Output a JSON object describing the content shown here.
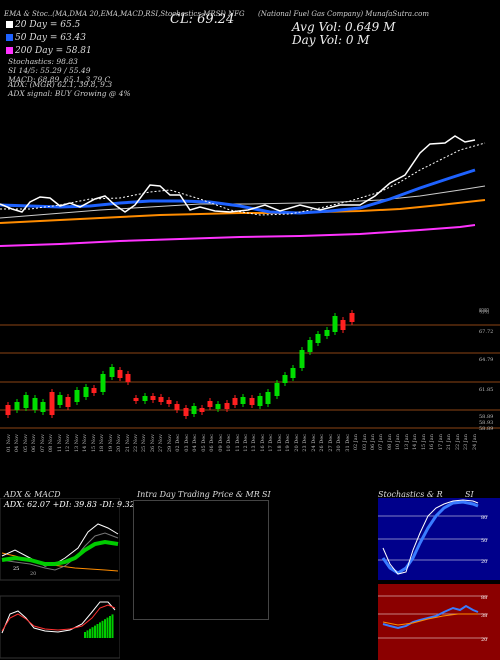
{
  "header": {
    "title_left": "EMA & Stoc..(MA,DMA 20,EMA,MACD,RSI,Stochastics,MRSI)",
    "close_label": "CL: 69.24",
    "company": "(National Fuel Gas Company) MunafaSutra.com",
    "avg_vol": "Avg Vol: 0.649 M",
    "day_vol": "Day Vol: 0 M",
    "ticker": "NFG"
  },
  "legend": [
    {
      "label": "20  Day = 65.5",
      "color": "#ffffff"
    },
    {
      "label": "50  Day = 63.43",
      "color": "#1e62ff"
    },
    {
      "label": "200  Day = 58.81",
      "color": "#ff33ff"
    }
  ],
  "stats": {
    "stochastics": "Stochastics: 98.83",
    "si": "SI 14/5: 55.29 / 55.49",
    "macd": "MACD: 68.89, 65.1, 3.79 C",
    "adx": "ADX:                   (MGR) 62.1, 39.8, 9.3",
    "adx_signal": "ADX  signal:                   BUY Growing @ 4%"
  },
  "price_levels": [
    "67.72",
    "64.79",
    "61.85",
    "58.89",
    "58.93",
    "58.89"
  ],
  "dates": [
    "01 Nov",
    "04 Nov",
    "05 Nov",
    "06 Nov",
    "07 Nov",
    "08 Nov",
    "11 Nov",
    "12 Nov",
    "13 Nov",
    "14 Nov",
    "15 Nov",
    "18 Nov",
    "19 Nov",
    "20 Nov",
    "21 Nov",
    "22 Nov",
    "25 Nov",
    "26 Nov",
    "27 Nov",
    "29 Nov",
    "02 Dec",
    "03 Dec",
    "04 Dec",
    "05 Dec",
    "06 Dec",
    "09 Dec",
    "10 Dec",
    "11 Dec",
    "12 Dec",
    "13 Dec",
    "16 Dec",
    "17 Dec",
    "18 Dec",
    "19 Dec",
    "20 Dec",
    "23 Dec",
    "24 Dec",
    "26 Dec",
    "27 Dec",
    "30 Dec",
    "31 Dec",
    "02 Jan",
    "03 Jan",
    "06 Jan",
    "07 Jan",
    "08 Jan",
    "10 Jan",
    "13 Jan",
    "14 Jan",
    "15 Jan",
    "16 Jan",
    "17 Jan",
    "21 Jan",
    "22 Jan",
    "23 Jan",
    "24 Jan"
  ],
  "bottom_panels": {
    "adx_title": "ADX  & MACD",
    "adx_values": "ADX: 62.07  +DI: 39.83  -DI: 9.32",
    "intraday_title": "Intra  Day Trading Price   & MR",
    "intraday_si": "SI",
    "stoch_title": "Stochastics & R",
    "stoch_si": "SI"
  },
  "stoch_scale": [
    "80",
    "50",
    "20"
  ],
  "si_scale": [
    "88",
    "38",
    "20"
  ],
  "colors": {
    "up": "#00dd00",
    "down": "#ff2020",
    "ma50": "#1e62ff",
    "ma200": "#ff33ff",
    "ema": "#ff8c00"
  }
}
